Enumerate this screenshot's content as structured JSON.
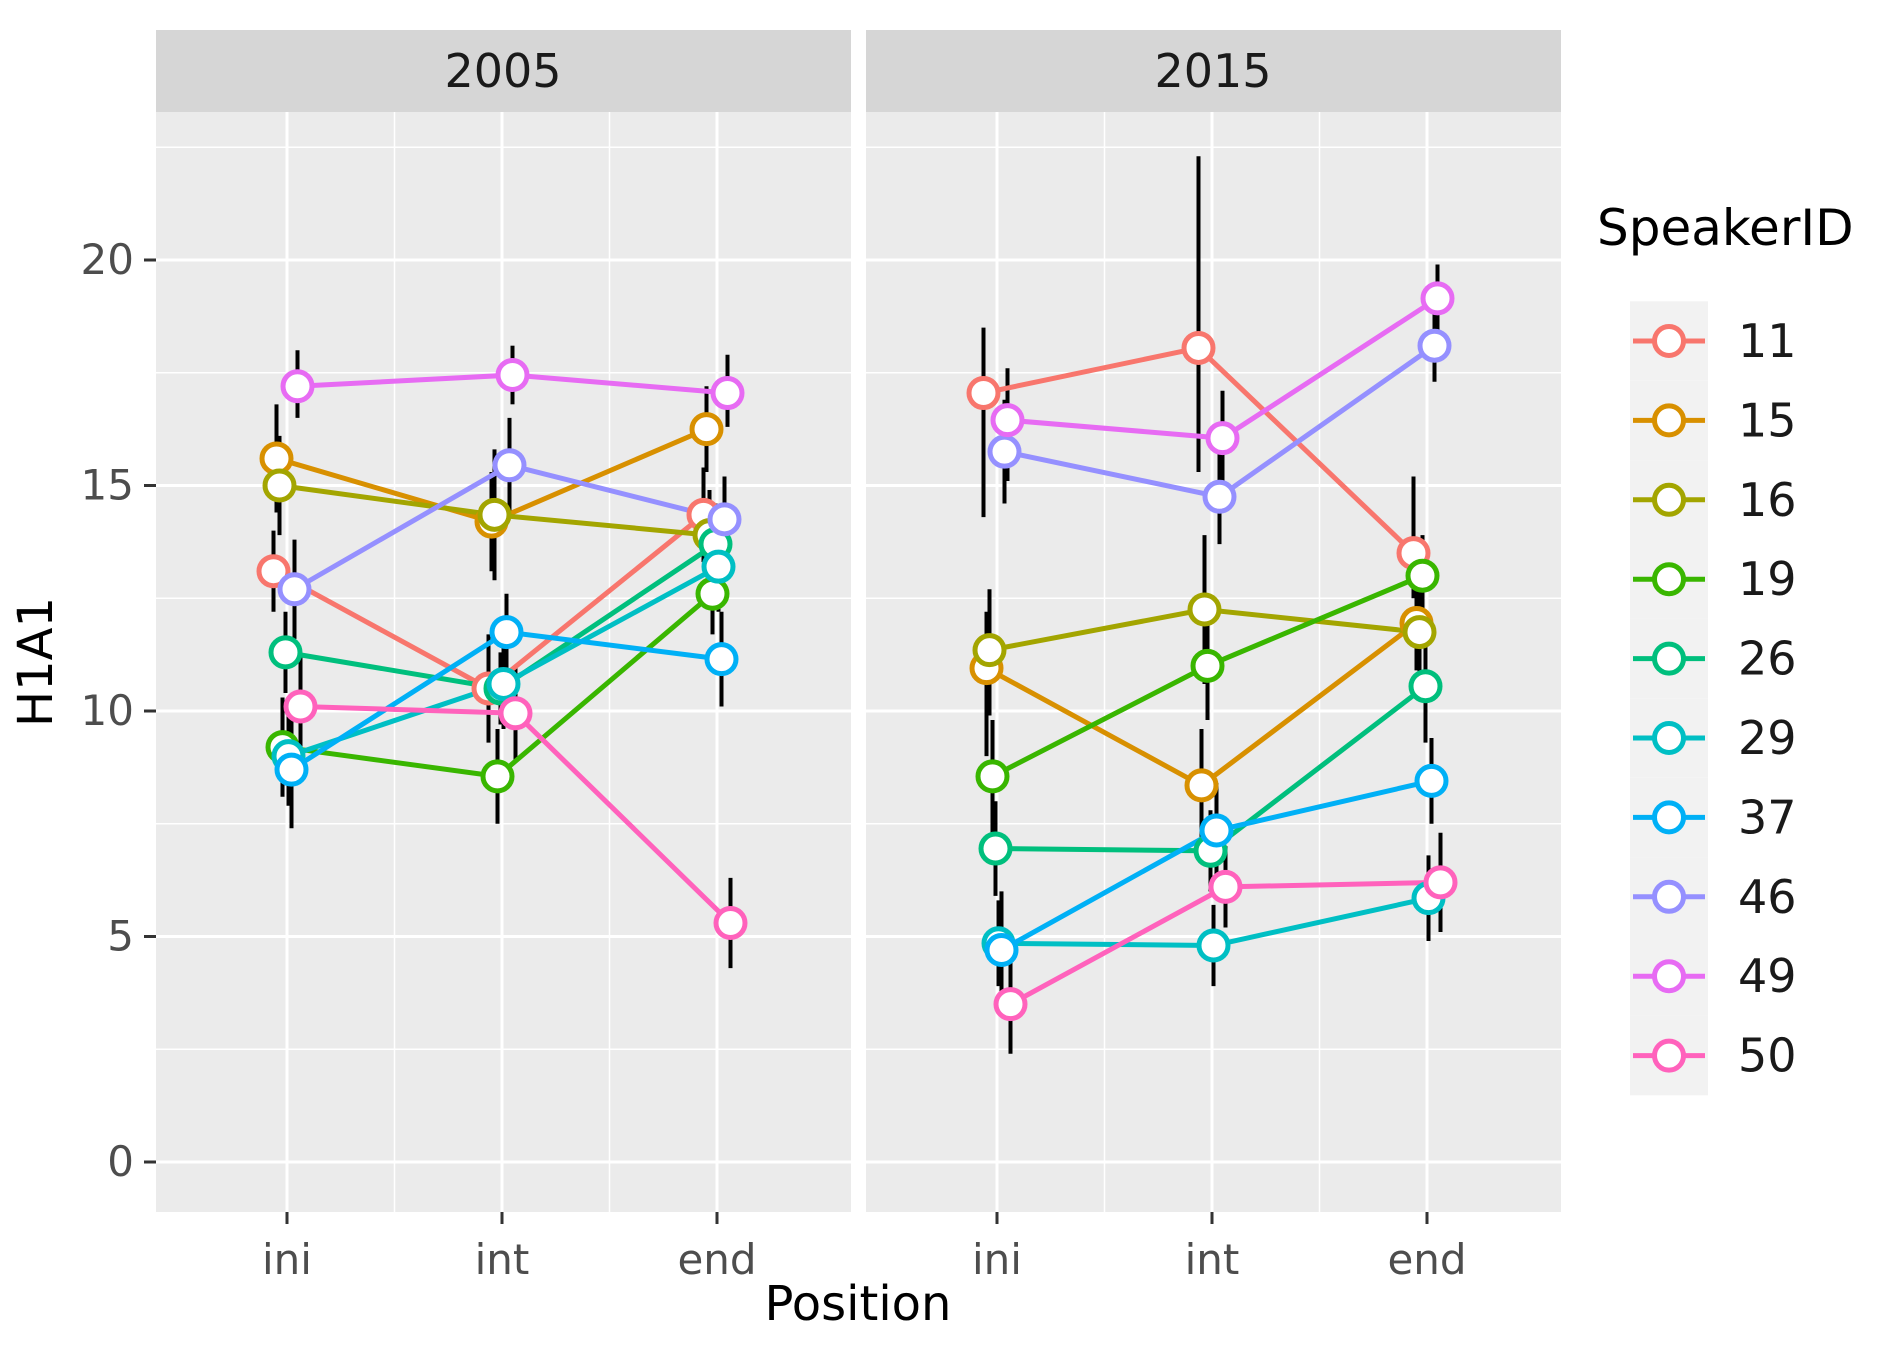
{
  "chart_data": {
    "type": "line",
    "title": "",
    "xlabel": "Position",
    "ylabel": "H1A1",
    "legend_title": "SpeakerID",
    "legend_position": "right",
    "facets": [
      "2005",
      "2015"
    ],
    "categories": [
      "ini",
      "int",
      "end"
    ],
    "yticks": [
      0,
      5,
      10,
      15,
      20
    ],
    "ylim": [
      -1.1,
      23.3
    ],
    "grid": "on",
    "colors": {
      "panel_bg": "#EBEBEB",
      "strip_bg": "#D6D6D6",
      "grid": "#FFFFFF",
      "tick_label": "#4D4D4D",
      "tick_mark": "#333333",
      "errorbar": "#000000",
      "point_fill": "#FFFFFF",
      "legend_key_bg": "#F2F2F2"
    },
    "series": [
      {
        "id": "11",
        "color": "#F8766D",
        "values": {
          "2005": [
            {
              "mean": 13.1,
              "lo": 12.2,
              "hi": 14.0
            },
            {
              "mean": 10.5,
              "lo": 9.3,
              "hi": 11.7
            },
            {
              "mean": 14.35,
              "lo": 13.3,
              "hi": 15.4
            }
          ],
          "2015": [
            {
              "mean": 17.05,
              "lo": 14.3,
              "hi": 18.5
            },
            {
              "mean": 18.05,
              "lo": 15.3,
              "hi": 22.3
            },
            {
              "mean": 13.5,
              "lo": 12.5,
              "hi": 15.2
            }
          ]
        }
      },
      {
        "id": "15",
        "color": "#D89000",
        "values": {
          "2005": [
            {
              "mean": 15.6,
              "lo": 14.4,
              "hi": 16.8
            },
            {
              "mean": 14.2,
              "lo": 13.1,
              "hi": 15.3
            },
            {
              "mean": 16.25,
              "lo": 15.3,
              "hi": 17.2
            }
          ],
          "2015": [
            {
              "mean": 10.95,
              "lo": 9.0,
              "hi": 12.2
            },
            {
              "mean": 8.35,
              "lo": 7.1,
              "hi": 9.6
            },
            {
              "mean": 11.95,
              "lo": 10.9,
              "hi": 13.0
            }
          ]
        }
      },
      {
        "id": "16",
        "color": "#A3A500",
        "values": {
          "2005": [
            {
              "mean": 15.0,
              "lo": 13.9,
              "hi": 16.1
            },
            {
              "mean": 14.35,
              "lo": 12.9,
              "hi": 15.8
            },
            {
              "mean": 13.9,
              "lo": 12.9,
              "hi": 14.9
            }
          ],
          "2015": [
            {
              "mean": 11.35,
              "lo": 9.9,
              "hi": 12.7
            },
            {
              "mean": 12.25,
              "lo": 10.6,
              "hi": 13.9
            },
            {
              "mean": 11.75,
              "lo": 10.3,
              "hi": 12.9
            }
          ]
        }
      },
      {
        "id": "19",
        "color": "#39B600",
        "values": {
          "2005": [
            {
              "mean": 9.2,
              "lo": 8.1,
              "hi": 10.3
            },
            {
              "mean": 8.55,
              "lo": 7.5,
              "hi": 9.6
            },
            {
              "mean": 12.6,
              "lo": 11.7,
              "hi": 13.5
            }
          ],
          "2015": [
            {
              "mean": 8.55,
              "lo": 7.3,
              "hi": 9.8
            },
            {
              "mean": 11.0,
              "lo": 9.8,
              "hi": 12.2
            },
            {
              "mean": 13.0,
              "lo": 12.1,
              "hi": 13.9
            }
          ]
        }
      },
      {
        "id": "26",
        "color": "#00BF7D",
        "values": {
          "2005": [
            {
              "mean": 11.3,
              "lo": 10.4,
              "hi": 12.2
            },
            {
              "mean": 10.5,
              "lo": 9.7,
              "hi": 11.3
            },
            {
              "mean": 13.7,
              "lo": 12.8,
              "hi": 14.6
            }
          ],
          "2015": [
            {
              "mean": 6.95,
              "lo": 5.9,
              "hi": 8.0
            },
            {
              "mean": 6.9,
              "lo": 6.0,
              "hi": 7.8
            },
            {
              "mean": 10.55,
              "lo": 9.3,
              "hi": 11.5
            }
          ]
        }
      },
      {
        "id": "29",
        "color": "#00BFC4",
        "values": {
          "2005": [
            {
              "mean": 9.0,
              "lo": 7.9,
              "hi": 10.1
            },
            {
              "mean": 10.6,
              "lo": 9.6,
              "hi": 11.6
            },
            {
              "mean": 13.2,
              "lo": 12.2,
              "hi": 14.2
            }
          ],
          "2015": [
            {
              "mean": 4.85,
              "lo": 3.9,
              "hi": 5.8
            },
            {
              "mean": 4.8,
              "lo": 3.9,
              "hi": 5.7
            },
            {
              "mean": 5.85,
              "lo": 4.9,
              "hi": 6.8
            }
          ]
        }
      },
      {
        "id": "37",
        "color": "#00B0F6",
        "values": {
          "2005": [
            {
              "mean": 8.7,
              "lo": 7.4,
              "hi": 10.0
            },
            {
              "mean": 11.75,
              "lo": 10.9,
              "hi": 12.6
            },
            {
              "mean": 11.15,
              "lo": 10.1,
              "hi": 12.2
            }
          ],
          "2015": [
            {
              "mean": 4.7,
              "lo": 3.4,
              "hi": 6.0
            },
            {
              "mean": 7.35,
              "lo": 6.3,
              "hi": 8.4
            },
            {
              "mean": 8.45,
              "lo": 7.5,
              "hi": 9.4
            }
          ]
        }
      },
      {
        "id": "46",
        "color": "#9590FF",
        "values": {
          "2005": [
            {
              "mean": 12.7,
              "lo": 11.6,
              "hi": 13.8
            },
            {
              "mean": 15.45,
              "lo": 14.4,
              "hi": 16.5
            },
            {
              "mean": 14.25,
              "lo": 13.3,
              "hi": 15.2
            }
          ],
          "2015": [
            {
              "mean": 15.75,
              "lo": 14.6,
              "hi": 16.9
            },
            {
              "mean": 14.75,
              "lo": 13.7,
              "hi": 15.8
            },
            {
              "mean": 18.1,
              "lo": 17.3,
              "hi": 18.9
            }
          ]
        }
      },
      {
        "id": "49",
        "color": "#E76BF3",
        "values": {
          "2005": [
            {
              "mean": 17.2,
              "lo": 16.5,
              "hi": 18.0
            },
            {
              "mean": 17.45,
              "lo": 16.8,
              "hi": 18.1
            },
            {
              "mean": 17.05,
              "lo": 16.3,
              "hi": 17.9
            }
          ],
          "2015": [
            {
              "mean": 16.45,
              "lo": 15.1,
              "hi": 17.6
            },
            {
              "mean": 16.05,
              "lo": 15.0,
              "hi": 17.1
            },
            {
              "mean": 19.15,
              "lo": 18.4,
              "hi": 19.9
            }
          ]
        }
      },
      {
        "id": "50",
        "color": "#FF62BC",
        "values": {
          "2005": [
            {
              "mean": 10.1,
              "lo": 9.0,
              "hi": 11.2
            },
            {
              "mean": 9.95,
              "lo": 8.9,
              "hi": 11.0
            },
            {
              "mean": 5.3,
              "lo": 4.3,
              "hi": 6.3
            }
          ],
          "2015": [
            {
              "mean": 3.5,
              "lo": 2.4,
              "hi": 4.6
            },
            {
              "mean": 6.1,
              "lo": 5.2,
              "hi": 7.0
            },
            {
              "mean": 6.2,
              "lo": 5.1,
              "hi": 7.3
            }
          ]
        }
      }
    ]
  }
}
